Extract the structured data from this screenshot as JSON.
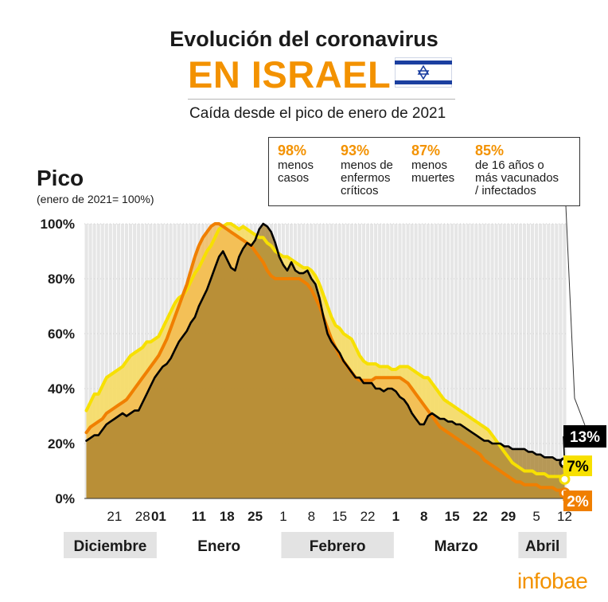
{
  "header": {
    "title_line1": "Evolución del coronavirus",
    "title_line2": "EN ISRAEL",
    "subtitle": "Caída desde el pico de enero de 2021"
  },
  "stats": [
    {
      "pct": "98%",
      "desc": "menos\ncasos"
    },
    {
      "pct": "93%",
      "desc": "menos de\nenfermos\ncríticos"
    },
    {
      "pct": "87%",
      "desc": "menos\nmuertes"
    },
    {
      "pct": "85%",
      "desc": "de 16 años o\nmás vacunados\n/ infectados"
    }
  ],
  "axis": {
    "y_title": "Pico",
    "y_subtitle": "(enero de 2021= 100%)"
  },
  "logo": "infobae",
  "colors": {
    "accent": "#f39200",
    "cases_line": "#f07f00",
    "critical_line": "#f7e000",
    "deaths_line": "#000000",
    "plot_bg": "#e6e6e6",
    "fill_dark": "#a8822e"
  },
  "chart_data": {
    "type": "area",
    "xlabel": "",
    "ylabel": "Pico",
    "ylim": [
      0,
      100
    ],
    "yticks": [
      "0%",
      "20%",
      "40%",
      "60%",
      "80%",
      "100%"
    ],
    "x": [
      "2020-12-14",
      "2020-12-15",
      "2020-12-16",
      "2020-12-17",
      "2020-12-18",
      "2020-12-19",
      "2020-12-20",
      "2020-12-21",
      "2020-12-22",
      "2020-12-23",
      "2020-12-24",
      "2020-12-25",
      "2020-12-26",
      "2020-12-27",
      "2020-12-28",
      "2020-12-29",
      "2020-12-30",
      "2020-12-31",
      "2021-01-01",
      "2021-01-02",
      "2021-01-03",
      "2021-01-04",
      "2021-01-05",
      "2021-01-06",
      "2021-01-07",
      "2021-01-08",
      "2021-01-09",
      "2021-01-10",
      "2021-01-11",
      "2021-01-12",
      "2021-01-13",
      "2021-01-14",
      "2021-01-15",
      "2021-01-16",
      "2021-01-17",
      "2021-01-18",
      "2021-01-19",
      "2021-01-20",
      "2021-01-21",
      "2021-01-22",
      "2021-01-23",
      "2021-01-24",
      "2021-01-25",
      "2021-01-26",
      "2021-01-27",
      "2021-01-28",
      "2021-01-29",
      "2021-01-30",
      "2021-01-31",
      "2021-02-01",
      "2021-02-02",
      "2021-02-03",
      "2021-02-04",
      "2021-02-05",
      "2021-02-06",
      "2021-02-07",
      "2021-02-08",
      "2021-02-09",
      "2021-02-10",
      "2021-02-11",
      "2021-02-12",
      "2021-02-13",
      "2021-02-14",
      "2021-02-15",
      "2021-02-16",
      "2021-02-17",
      "2021-02-18",
      "2021-02-19",
      "2021-02-20",
      "2021-02-21",
      "2021-02-22",
      "2021-02-23",
      "2021-02-24",
      "2021-02-25",
      "2021-02-26",
      "2021-02-27",
      "2021-02-28",
      "2021-03-01",
      "2021-03-02",
      "2021-03-03",
      "2021-03-04",
      "2021-03-05",
      "2021-03-06",
      "2021-03-07",
      "2021-03-08",
      "2021-03-09",
      "2021-03-10",
      "2021-03-11",
      "2021-03-12",
      "2021-03-13",
      "2021-03-14",
      "2021-03-15",
      "2021-03-16",
      "2021-03-17",
      "2021-03-18",
      "2021-03-19",
      "2021-03-20",
      "2021-03-21",
      "2021-03-22",
      "2021-03-23",
      "2021-03-24",
      "2021-03-25",
      "2021-03-26",
      "2021-03-27",
      "2021-03-28",
      "2021-03-29",
      "2021-03-30",
      "2021-03-31",
      "2021-04-01",
      "2021-04-02",
      "2021-04-03",
      "2021-04-04",
      "2021-04-05",
      "2021-04-06",
      "2021-04-07",
      "2021-04-08",
      "2021-04-09",
      "2021-04-10",
      "2021-04-11",
      "2021-04-12"
    ],
    "x_ticks": [
      {
        "label": "21",
        "date": "2020-12-21",
        "bold": false
      },
      {
        "label": "28",
        "date": "2020-12-28",
        "bold": false
      },
      {
        "label": "01",
        "date": "2021-01-01",
        "bold": true
      },
      {
        "label": "11",
        "date": "2021-01-11",
        "bold": true
      },
      {
        "label": "18",
        "date": "2021-01-18",
        "bold": true
      },
      {
        "label": "25",
        "date": "2021-01-25",
        "bold": true
      },
      {
        "label": "1",
        "date": "2021-02-01",
        "bold": false
      },
      {
        "label": "8",
        "date": "2021-02-08",
        "bold": false
      },
      {
        "label": "15",
        "date": "2021-02-15",
        "bold": false
      },
      {
        "label": "22",
        "date": "2021-02-22",
        "bold": false
      },
      {
        "label": "1",
        "date": "2021-03-01",
        "bold": true
      },
      {
        "label": "8",
        "date": "2021-03-08",
        "bold": true
      },
      {
        "label": "15",
        "date": "2021-03-15",
        "bold": true
      },
      {
        "label": "22",
        "date": "2021-03-22",
        "bold": true
      },
      {
        "label": "29",
        "date": "2021-03-29",
        "bold": true
      },
      {
        "label": "5",
        "date": "2021-04-05",
        "bold": false
      },
      {
        "label": "12",
        "date": "2021-04-12",
        "bold": false
      }
    ],
    "months": [
      {
        "label": "Diciembre",
        "from": "2020-12-14",
        "to": "2020-12-31",
        "shaded": true
      },
      {
        "label": "Enero",
        "from": "2021-01-01",
        "to": "2021-01-31",
        "shaded": false
      },
      {
        "label": "Febrero",
        "from": "2021-02-01",
        "to": "2021-02-28",
        "shaded": true
      },
      {
        "label": "Marzo",
        "from": "2021-03-01",
        "to": "2021-03-31",
        "shaded": false
      },
      {
        "label": "Abril",
        "from": "2021-04-01",
        "to": "2021-04-12",
        "shaded": true
      }
    ],
    "series": [
      {
        "key": "critical",
        "color": "#f7e000",
        "end_label": "7%",
        "values": [
          32,
          35,
          38,
          38,
          41,
          44,
          45,
          46,
          47,
          48,
          50,
          52,
          53,
          54,
          55,
          57,
          57,
          58,
          59,
          62,
          65,
          68,
          71,
          73,
          74,
          76,
          79,
          82,
          84,
          87,
          90,
          92,
          95,
          98,
          99,
          100,
          100,
          99,
          98,
          99,
          98,
          97,
          96,
          95,
          95,
          93,
          92,
          90,
          89,
          88,
          88,
          87,
          86,
          85,
          84,
          84,
          83,
          81,
          78,
          74,
          70,
          66,
          63,
          62,
          60,
          59,
          58,
          55,
          52,
          50,
          49,
          49,
          49,
          48,
          48,
          48,
          47,
          47,
          48,
          48,
          48,
          47,
          46,
          45,
          44,
          44,
          42,
          40,
          38,
          36,
          35,
          34,
          33,
          32,
          31,
          30,
          29,
          28,
          27,
          26,
          25,
          23,
          21,
          19,
          17,
          15,
          13,
          12,
          11,
          10,
          10,
          10,
          9,
          9,
          9,
          8,
          8,
          8,
          8,
          7
        ]
      },
      {
        "key": "cases",
        "color": "#f07f00",
        "end_label": "2%",
        "values": [
          24,
          26,
          27,
          28,
          29,
          31,
          32,
          33,
          34,
          35,
          36,
          38,
          40,
          42,
          44,
          46,
          48,
          50,
          52,
          55,
          58,
          62,
          66,
          70,
          74,
          78,
          83,
          88,
          92,
          95,
          97,
          99,
          100,
          100,
          99,
          98,
          97,
          96,
          95,
          94,
          93,
          92,
          90,
          88,
          86,
          83,
          81,
          80,
          80,
          80,
          80,
          80,
          80,
          80,
          79,
          78,
          76,
          73,
          70,
          66,
          62,
          58,
          55,
          52,
          50,
          48,
          46,
          44,
          43,
          43,
          43,
          43,
          44,
          44,
          44,
          44,
          44,
          44,
          44,
          43,
          42,
          40,
          38,
          36,
          34,
          32,
          30,
          28,
          26,
          25,
          24,
          23,
          22,
          21,
          20,
          19,
          18,
          17,
          16,
          14,
          13,
          12,
          11,
          10,
          9,
          8,
          7,
          6,
          6,
          5,
          5,
          5,
          5,
          4,
          4,
          4,
          4,
          3,
          3,
          2
        ]
      },
      {
        "key": "deaths",
        "color": "#000000",
        "end_label": "13%",
        "values": [
          21,
          22,
          23,
          23,
          25,
          27,
          28,
          29,
          30,
          31,
          30,
          31,
          32,
          32,
          35,
          38,
          41,
          44,
          46,
          48,
          49,
          51,
          54,
          57,
          59,
          61,
          64,
          66,
          70,
          73,
          76,
          80,
          84,
          88,
          90,
          87,
          84,
          83,
          88,
          91,
          93,
          92,
          94,
          98,
          100,
          99,
          97,
          93,
          88,
          85,
          83,
          86,
          83,
          82,
          82,
          83,
          80,
          78,
          73,
          66,
          60,
          57,
          55,
          53,
          50,
          48,
          46,
          44,
          44,
          42,
          42,
          42,
          40,
          40,
          39,
          40,
          40,
          39,
          37,
          36,
          34,
          31,
          29,
          27,
          27,
          30,
          31,
          30,
          29,
          29,
          28,
          28,
          27,
          27,
          26,
          25,
          24,
          23,
          22,
          21,
          21,
          20,
          20,
          20,
          19,
          19,
          18,
          18,
          18,
          18,
          17,
          17,
          16,
          16,
          15,
          15,
          15,
          14,
          14,
          13
        ]
      }
    ]
  }
}
